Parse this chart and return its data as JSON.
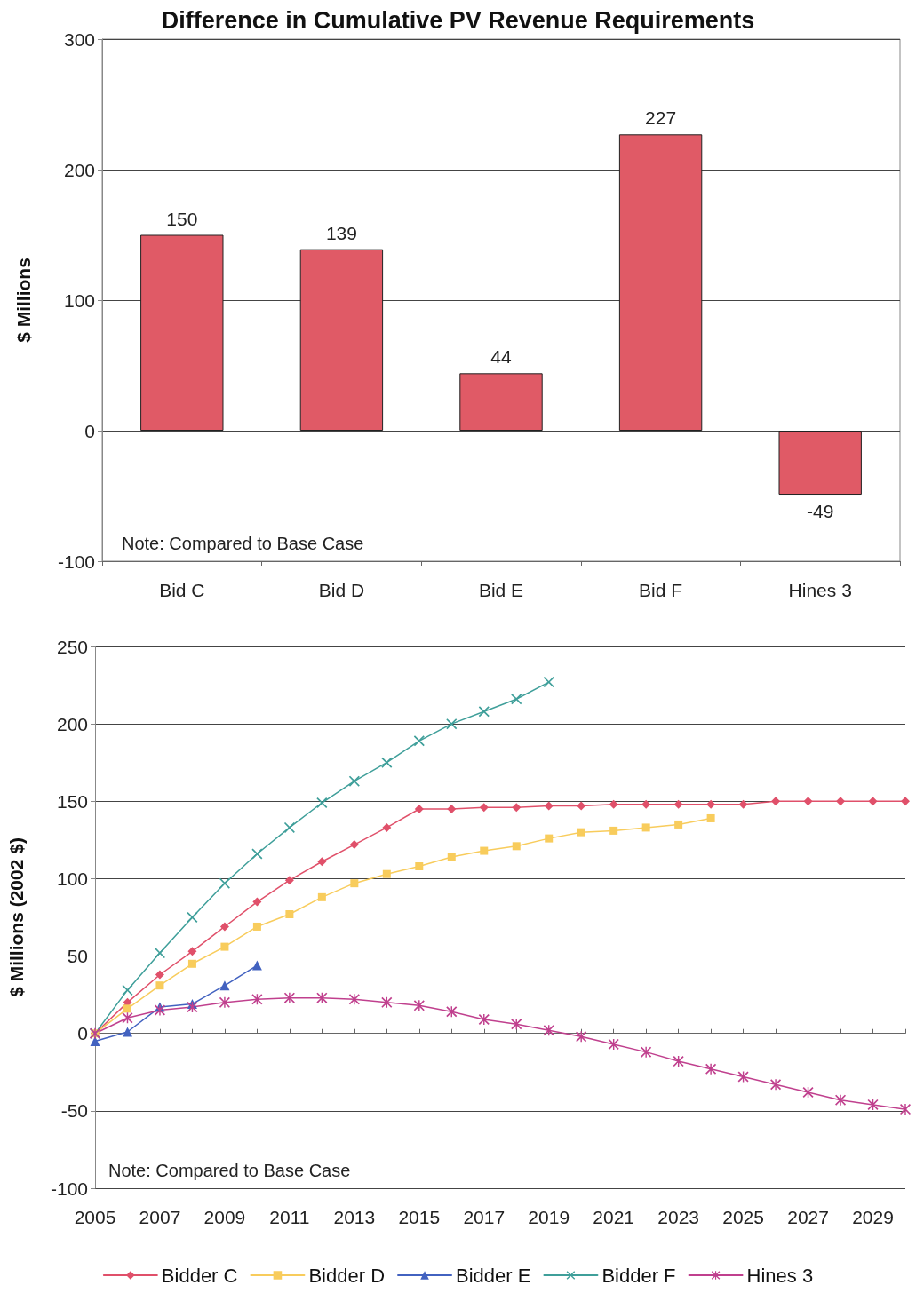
{
  "chart_data": [
    {
      "type": "bar",
      "title": "Difference in Cumulative PV Revenue Requirements",
      "ylabel": "$ Millions",
      "categories": [
        "Bid C",
        "Bid D",
        "Bid E",
        "Bid F",
        "Hines 3"
      ],
      "values": [
        150,
        139,
        44,
        227,
        -49
      ],
      "color": "#e05a66",
      "ylim": [
        -100,
        300
      ],
      "yticks": [
        -100,
        0,
        100,
        200,
        300
      ],
      "grid": "y",
      "data_labels": true,
      "legend": false,
      "annotations": [
        "Note: Compared to Base Case"
      ]
    },
    {
      "type": "line",
      "ylabel": "$ Millions (2002 $)",
      "categories": [
        "2005",
        null,
        "2007",
        null,
        "2009",
        null,
        "2011",
        null,
        "2013",
        null,
        "2015",
        null,
        "2017",
        null,
        "2019",
        null,
        "2021",
        null,
        "2023",
        null,
        "2025",
        null,
        "2027",
        null,
        "2029",
        null
      ],
      "series": [
        {
          "name": "Bidder C",
          "color": "#e0506a",
          "marker": "diamond",
          "values": [
            0,
            20,
            38,
            53,
            69,
            85,
            99,
            111,
            122,
            133,
            145,
            145,
            146,
            146,
            147,
            147,
            148,
            148,
            148,
            148,
            148,
            150,
            150,
            150,
            150,
            150
          ]
        },
        {
          "name": "Bidder D",
          "color": "#f8cc5c",
          "marker": "square",
          "values": [
            0,
            16,
            31,
            45,
            56,
            69,
            77,
            88,
            97,
            103,
            108,
            114,
            118,
            121,
            126,
            130,
            131,
            133,
            135,
            139,
            null,
            null,
            null,
            null,
            null,
            null
          ]
        },
        {
          "name": "Bidder E",
          "color": "#4262c0",
          "marker": "triangle",
          "values": [
            -5,
            1,
            17,
            19,
            31,
            44,
            null,
            null,
            null,
            null,
            null,
            null,
            null,
            null,
            null,
            null,
            null,
            null,
            null,
            null,
            null,
            null,
            null,
            null,
            null,
            null
          ]
        },
        {
          "name": "Bidder F",
          "color": "#3f9f9a",
          "marker": "cross",
          "values": [
            0,
            28,
            52,
            75,
            97,
            116,
            133,
            149,
            163,
            175,
            189,
            200,
            208,
            216,
            227,
            null,
            null,
            null,
            null,
            null,
            null,
            null,
            null,
            null,
            null,
            null
          ]
        },
        {
          "name": "Hines 3",
          "color": "#c0408e",
          "marker": "star",
          "values": [
            0,
            10,
            15,
            17,
            20,
            22,
            23,
            23,
            22,
            20,
            18,
            14,
            9,
            6,
            2,
            -2,
            -7,
            -12,
            -18,
            -23,
            -28,
            -33,
            -38,
            -43,
            -46,
            -49
          ]
        }
      ],
      "ylim": [
        -100,
        250
      ],
      "yticks": [
        -100,
        -50,
        0,
        50,
        100,
        150,
        200,
        250
      ],
      "grid": "y",
      "legend": "bottom",
      "annotations": [
        "Note: Compared to Base Case"
      ]
    }
  ]
}
